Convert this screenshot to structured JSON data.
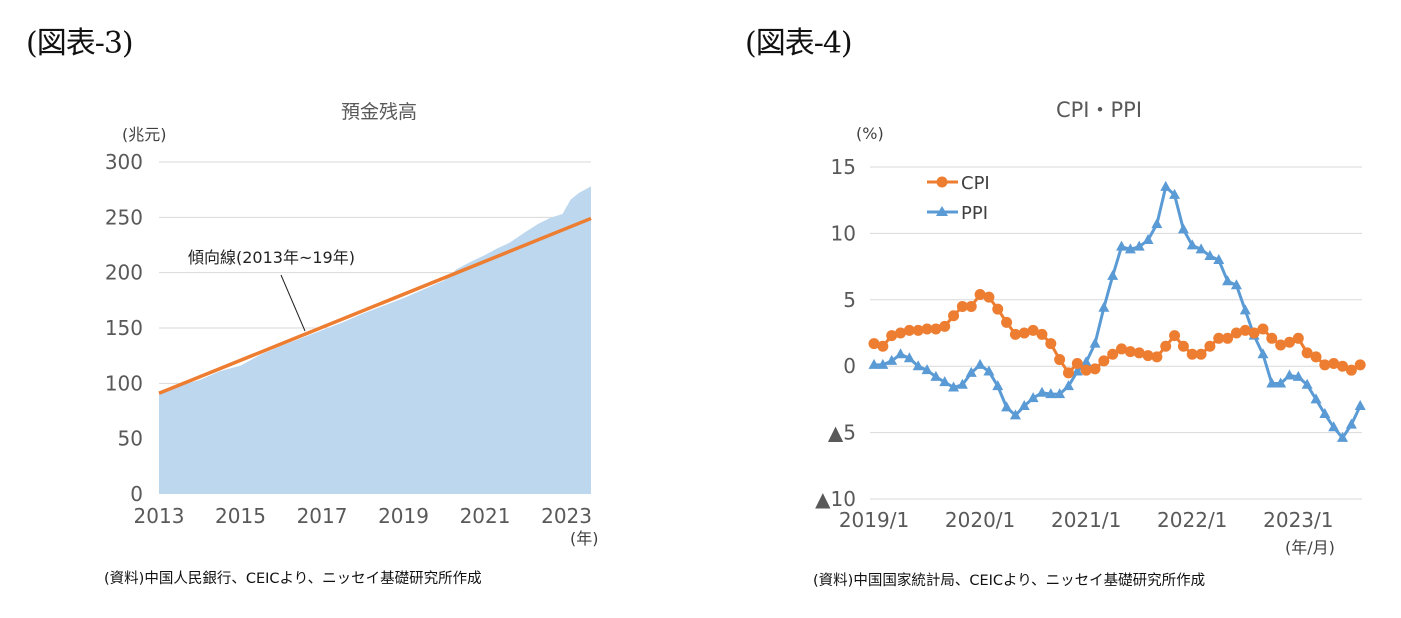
{
  "figures": {
    "fig3": {
      "label": "(図表-3)",
      "source": "(資料)中国人民銀行、CEICより、ニッセイ基礎研究所作成"
    },
    "fig4": {
      "label": "(図表-4)",
      "source": "(資料)中国国家統計局、CEICより、ニッセイ基礎研究所作成"
    }
  },
  "chart_data": [
    {
      "type": "area",
      "title": "預金残高",
      "ylabel": "(兆元)",
      "xlabel": "(年)",
      "ylim": [
        0,
        300
      ],
      "yticks": [
        0,
        50,
        100,
        150,
        200,
        250,
        300
      ],
      "ytick_labels": [
        "0",
        "50",
        "100",
        "150",
        "200",
        "250",
        "300"
      ],
      "xlim": [
        2013.0,
        2023.6
      ],
      "xticks": [
        2013,
        2015,
        2017,
        2019,
        2021,
        2023
      ],
      "xtick_labels": [
        "2013",
        "2015",
        "2017",
        "2019",
        "2021",
        "2023"
      ],
      "grid": true,
      "colors": {
        "area": "#bdd7ee",
        "trend": "#ed7d31"
      },
      "series": [
        {
          "name": "預金残高",
          "kind": "area",
          "x": [
            2013.0,
            2013.5,
            2014.0,
            2014.5,
            2015.0,
            2015.5,
            2016.0,
            2016.5,
            2017.0,
            2017.5,
            2018.0,
            2018.5,
            2019.0,
            2019.5,
            2020.0,
            2020.3,
            2020.6,
            2021.0,
            2021.3,
            2021.6,
            2022.0,
            2022.3,
            2022.6,
            2022.9,
            2023.1,
            2023.3,
            2023.6
          ],
          "values": [
            92,
            98,
            103,
            111,
            116,
            126,
            134,
            141,
            148,
            155,
            163,
            170,
            177,
            185,
            193,
            203,
            209,
            216,
            222,
            227,
            237,
            244,
            249.5,
            253,
            266,
            272,
            278
          ]
        },
        {
          "name": "傾向線(2013年~19年)",
          "kind": "line",
          "x": [
            2013.0,
            2023.6
          ],
          "values": [
            91,
            249
          ]
        }
      ],
      "annotations": [
        {
          "text": "傾向線(2013年~19年)",
          "points_to": "trend line near 2016.6"
        }
      ]
    },
    {
      "type": "line",
      "title": "CPI・PPI",
      "ylabel": "(%)",
      "xlabel": "(年/月)",
      "ylim": [
        -10,
        15
      ],
      "yticks": [
        -10,
        -5,
        0,
        5,
        10,
        15
      ],
      "ytick_labels": [
        "▲10",
        "▲5",
        "0",
        "5",
        "10",
        "15"
      ],
      "xtick_labels": [
        "2019/1",
        "2020/1",
        "2021/1",
        "2022/1",
        "2023/1"
      ],
      "xtick_index": [
        0,
        12,
        24,
        36,
        48
      ],
      "grid": true,
      "legend": "top-left",
      "x_start": "2019/1",
      "x_end": "2023/8",
      "series": [
        {
          "name": "CPI",
          "color": "#ed7d31",
          "marker": "circle",
          "values": [
            1.7,
            1.5,
            2.3,
            2.5,
            2.7,
            2.7,
            2.8,
            2.8,
            3.0,
            3.8,
            4.5,
            4.5,
            5.4,
            5.2,
            4.3,
            3.3,
            2.4,
            2.5,
            2.7,
            2.4,
            1.7,
            0.5,
            -0.5,
            0.2,
            -0.3,
            -0.2,
            0.4,
            0.9,
            1.3,
            1.1,
            1.0,
            0.8,
            0.7,
            1.5,
            2.3,
            1.5,
            0.9,
            0.9,
            1.5,
            2.1,
            2.1,
            2.5,
            2.7,
            2.5,
            2.8,
            2.1,
            1.6,
            1.8,
            2.1,
            1.0,
            0.7,
            0.1,
            0.2,
            0.0,
            -0.3,
            0.1
          ]
        },
        {
          "name": "PPI",
          "color": "#5b9bd5",
          "marker": "triangle",
          "values": [
            0.1,
            0.1,
            0.4,
            0.9,
            0.6,
            0.0,
            -0.3,
            -0.8,
            -1.2,
            -1.6,
            -1.4,
            -0.5,
            0.1,
            -0.4,
            -1.5,
            -3.1,
            -3.7,
            -3.0,
            -2.4,
            -2.0,
            -2.1,
            -2.1,
            -1.5,
            -0.4,
            0.3,
            1.7,
            4.4,
            6.8,
            9.0,
            8.8,
            9.0,
            9.5,
            10.7,
            13.5,
            12.9,
            10.3,
            9.1,
            8.8,
            8.3,
            8.0,
            6.4,
            6.1,
            4.2,
            2.3,
            0.9,
            -1.3,
            -1.3,
            -0.7,
            -0.8,
            -1.4,
            -2.5,
            -3.6,
            -4.6,
            -5.4,
            -4.4,
            -3.0
          ]
        }
      ]
    }
  ]
}
